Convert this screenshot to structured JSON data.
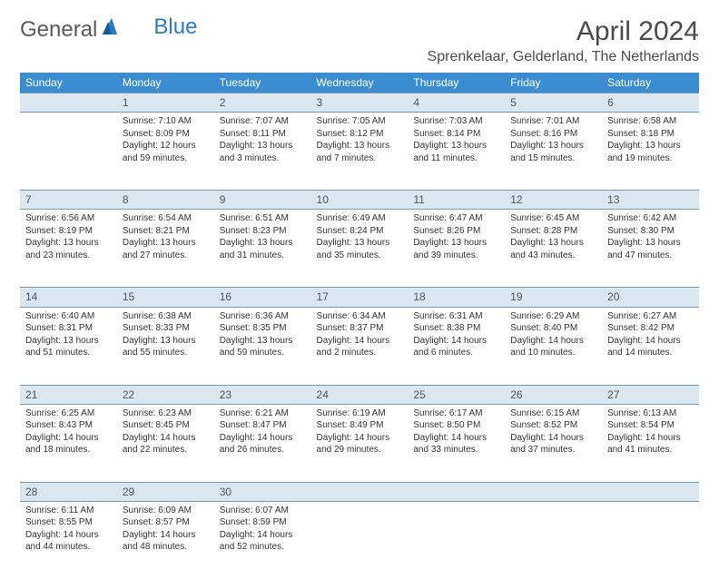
{
  "logo": {
    "part1": "General",
    "part2": "Blue"
  },
  "title": "April 2024",
  "location": "Sprenkelaar, Gelderland, The Netherlands",
  "colors": {
    "header_bg": "#3a8dd0",
    "header_text": "#ffffff",
    "daynum_bg": "#dce6ee",
    "daynum_border": "#7a97ae",
    "daynum_text": "#4a5a68",
    "body_text": "#333333",
    "logo_gray": "#5a5a5a",
    "logo_blue": "#2b7bbf",
    "page_bg": "#ffffff"
  },
  "typography": {
    "title_fontsize": 30,
    "location_fontsize": 16,
    "dayheader_fontsize": 12,
    "daynum_fontsize": 12,
    "cell_fontsize": 10
  },
  "calendar": {
    "type": "table",
    "day_headers": [
      "Sunday",
      "Monday",
      "Tuesday",
      "Wednesday",
      "Thursday",
      "Friday",
      "Saturday"
    ],
    "weeks": [
      {
        "nums": [
          "",
          "1",
          "2",
          "3",
          "4",
          "5",
          "6"
        ],
        "cells": [
          null,
          {
            "sunrise": "Sunrise: 7:10 AM",
            "sunset": "Sunset: 8:09 PM",
            "daylight": "Daylight: 12 hours and 59 minutes."
          },
          {
            "sunrise": "Sunrise: 7:07 AM",
            "sunset": "Sunset: 8:11 PM",
            "daylight": "Daylight: 13 hours and 3 minutes."
          },
          {
            "sunrise": "Sunrise: 7:05 AM",
            "sunset": "Sunset: 8:12 PM",
            "daylight": "Daylight: 13 hours and 7 minutes."
          },
          {
            "sunrise": "Sunrise: 7:03 AM",
            "sunset": "Sunset: 8:14 PM",
            "daylight": "Daylight: 13 hours and 11 minutes."
          },
          {
            "sunrise": "Sunrise: 7:01 AM",
            "sunset": "Sunset: 8:16 PM",
            "daylight": "Daylight: 13 hours and 15 minutes."
          },
          {
            "sunrise": "Sunrise: 6:58 AM",
            "sunset": "Sunset: 8:18 PM",
            "daylight": "Daylight: 13 hours and 19 minutes."
          }
        ]
      },
      {
        "nums": [
          "7",
          "8",
          "9",
          "10",
          "11",
          "12",
          "13"
        ],
        "cells": [
          {
            "sunrise": "Sunrise: 6:56 AM",
            "sunset": "Sunset: 8:19 PM",
            "daylight": "Daylight: 13 hours and 23 minutes."
          },
          {
            "sunrise": "Sunrise: 6:54 AM",
            "sunset": "Sunset: 8:21 PM",
            "daylight": "Daylight: 13 hours and 27 minutes."
          },
          {
            "sunrise": "Sunrise: 6:51 AM",
            "sunset": "Sunset: 8:23 PM",
            "daylight": "Daylight: 13 hours and 31 minutes."
          },
          {
            "sunrise": "Sunrise: 6:49 AM",
            "sunset": "Sunset: 8:24 PM",
            "daylight": "Daylight: 13 hours and 35 minutes."
          },
          {
            "sunrise": "Sunrise: 6:47 AM",
            "sunset": "Sunset: 8:26 PM",
            "daylight": "Daylight: 13 hours and 39 minutes."
          },
          {
            "sunrise": "Sunrise: 6:45 AM",
            "sunset": "Sunset: 8:28 PM",
            "daylight": "Daylight: 13 hours and 43 minutes."
          },
          {
            "sunrise": "Sunrise: 6:42 AM",
            "sunset": "Sunset: 8:30 PM",
            "daylight": "Daylight: 13 hours and 47 minutes."
          }
        ]
      },
      {
        "nums": [
          "14",
          "15",
          "16",
          "17",
          "18",
          "19",
          "20"
        ],
        "cells": [
          {
            "sunrise": "Sunrise: 6:40 AM",
            "sunset": "Sunset: 8:31 PM",
            "daylight": "Daylight: 13 hours and 51 minutes."
          },
          {
            "sunrise": "Sunrise: 6:38 AM",
            "sunset": "Sunset: 8:33 PM",
            "daylight": "Daylight: 13 hours and 55 minutes."
          },
          {
            "sunrise": "Sunrise: 6:36 AM",
            "sunset": "Sunset: 8:35 PM",
            "daylight": "Daylight: 13 hours and 59 minutes."
          },
          {
            "sunrise": "Sunrise: 6:34 AM",
            "sunset": "Sunset: 8:37 PM",
            "daylight": "Daylight: 14 hours and 2 minutes."
          },
          {
            "sunrise": "Sunrise: 6:31 AM",
            "sunset": "Sunset: 8:38 PM",
            "daylight": "Daylight: 14 hours and 6 minutes."
          },
          {
            "sunrise": "Sunrise: 6:29 AM",
            "sunset": "Sunset: 8:40 PM",
            "daylight": "Daylight: 14 hours and 10 minutes."
          },
          {
            "sunrise": "Sunrise: 6:27 AM",
            "sunset": "Sunset: 8:42 PM",
            "daylight": "Daylight: 14 hours and 14 minutes."
          }
        ]
      },
      {
        "nums": [
          "21",
          "22",
          "23",
          "24",
          "25",
          "26",
          "27"
        ],
        "cells": [
          {
            "sunrise": "Sunrise: 6:25 AM",
            "sunset": "Sunset: 8:43 PM",
            "daylight": "Daylight: 14 hours and 18 minutes."
          },
          {
            "sunrise": "Sunrise: 6:23 AM",
            "sunset": "Sunset: 8:45 PM",
            "daylight": "Daylight: 14 hours and 22 minutes."
          },
          {
            "sunrise": "Sunrise: 6:21 AM",
            "sunset": "Sunset: 8:47 PM",
            "daylight": "Daylight: 14 hours and 26 minutes."
          },
          {
            "sunrise": "Sunrise: 6:19 AM",
            "sunset": "Sunset: 8:49 PM",
            "daylight": "Daylight: 14 hours and 29 minutes."
          },
          {
            "sunrise": "Sunrise: 6:17 AM",
            "sunset": "Sunset: 8:50 PM",
            "daylight": "Daylight: 14 hours and 33 minutes."
          },
          {
            "sunrise": "Sunrise: 6:15 AM",
            "sunset": "Sunset: 8:52 PM",
            "daylight": "Daylight: 14 hours and 37 minutes."
          },
          {
            "sunrise": "Sunrise: 6:13 AM",
            "sunset": "Sunset: 8:54 PM",
            "daylight": "Daylight: 14 hours and 41 minutes."
          }
        ]
      },
      {
        "nums": [
          "28",
          "29",
          "30",
          "",
          "",
          "",
          ""
        ],
        "cells": [
          {
            "sunrise": "Sunrise: 6:11 AM",
            "sunset": "Sunset: 8:55 PM",
            "daylight": "Daylight: 14 hours and 44 minutes."
          },
          {
            "sunrise": "Sunrise: 6:09 AM",
            "sunset": "Sunset: 8:57 PM",
            "daylight": "Daylight: 14 hours and 48 minutes."
          },
          {
            "sunrise": "Sunrise: 6:07 AM",
            "sunset": "Sunset: 8:59 PM",
            "daylight": "Daylight: 14 hours and 52 minutes."
          },
          null,
          null,
          null,
          null
        ]
      }
    ]
  }
}
